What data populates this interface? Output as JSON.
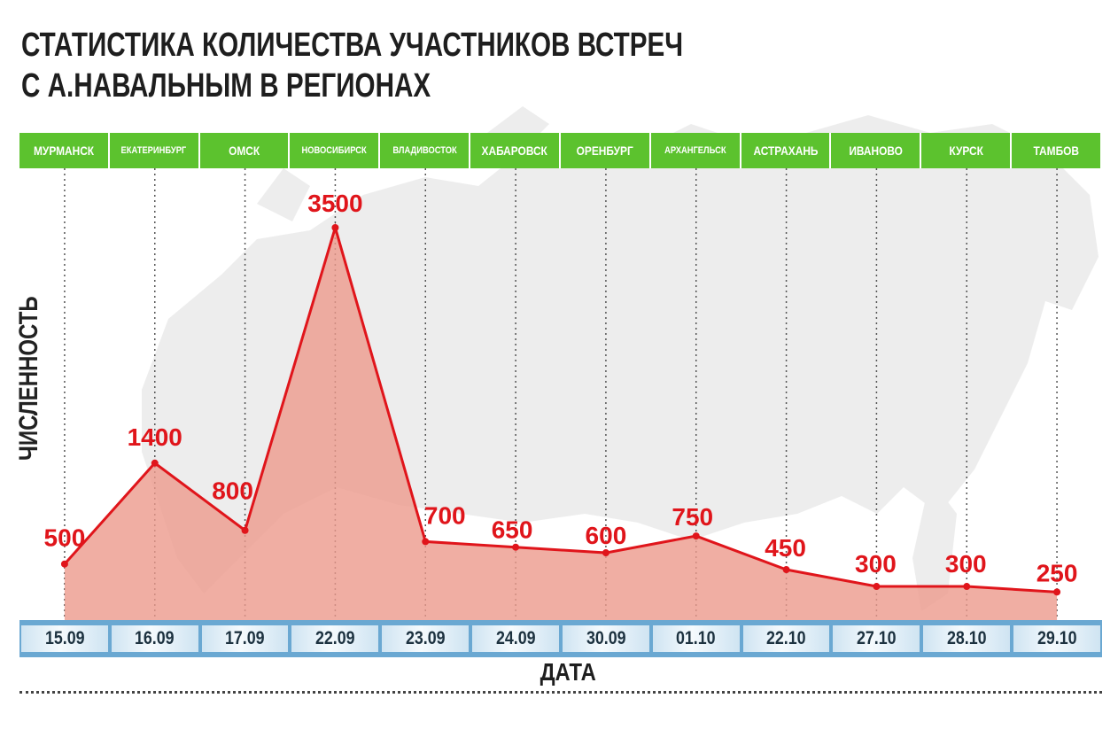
{
  "title_line1": "СТАТИСТИКА КОЛИЧЕСТВА УЧАСТНИКОВ ВСТРЕЧ",
  "title_line2": "С А.НАВАЛЬНЫМ В РЕГИОНАХ",
  "colors": {
    "city_bar": "#5cc22e",
    "line": "#e0151b",
    "area": "#ec9a8c",
    "date_bar": "#6aa8d2",
    "map": "#ededed"
  },
  "chart_data": {
    "type": "area",
    "title": "СТАТИСТИКА КОЛИЧЕСТВА УЧАСТНИКОВ ВСТРЕЧ С А.НАВАЛЬНЫМ В РЕГИОНАХ",
    "xlabel": "ДАТА",
    "ylabel": "ЧИСЛЕННОСТЬ",
    "ylim": [
      0,
      3500
    ],
    "grid": false,
    "x": [
      "15.09",
      "16.09",
      "17.09",
      "22.09",
      "23.09",
      "24.09",
      "30.09",
      "01.10",
      "22.10",
      "27.10",
      "28.10",
      "29.10"
    ],
    "cities": [
      "МУРМАНСК",
      "ЕКАТЕРИНБУРГ",
      "ОМСК",
      "НОВОСИБИРСК",
      "ВЛАДИВОСТОК",
      "ХАБАРОВСК",
      "ОРЕНБУРГ",
      "АРХАНГЕЛЬСК",
      "АСТРАХАНЬ",
      "ИВАНОВО",
      "КУРСК",
      "ТАМБОВ"
    ],
    "series": [
      {
        "values": [
          500,
          1400,
          800,
          3500,
          700,
          650,
          600,
          750,
          450,
          300,
          300,
          250
        ]
      }
    ]
  }
}
